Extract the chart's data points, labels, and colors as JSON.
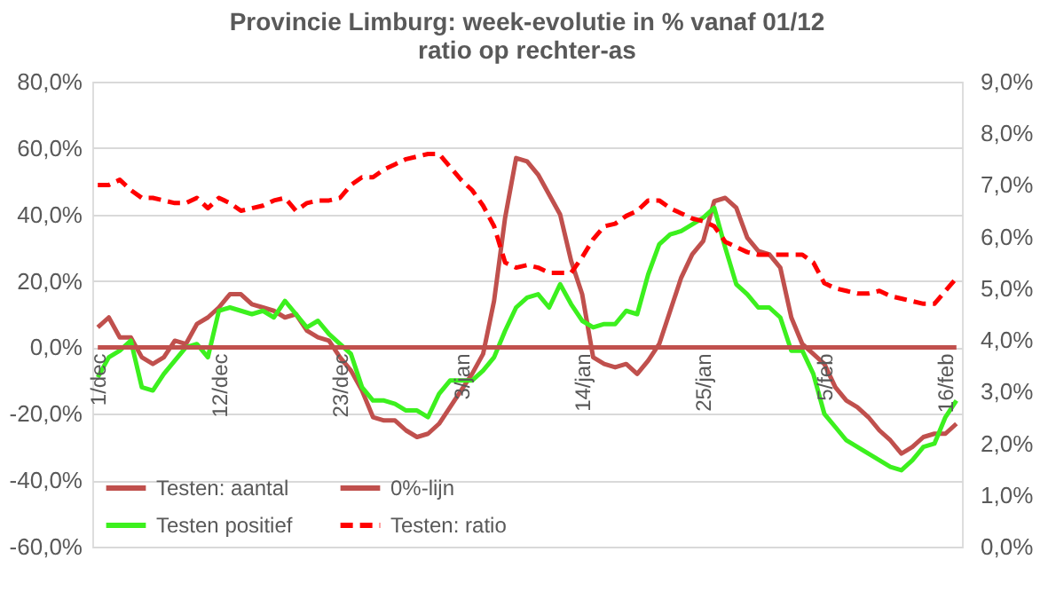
{
  "chart_data": {
    "type": "line",
    "title": "Provincie Limburg: week-evolutie in %  vanaf 01/12",
    "subtitle": "ratio op rechter-as",
    "categories": [
      "1/dec",
      null,
      null,
      null,
      null,
      null,
      null,
      null,
      null,
      null,
      null,
      "12/dec",
      null,
      null,
      null,
      null,
      null,
      null,
      null,
      null,
      null,
      null,
      "23/dec",
      null,
      null,
      null,
      null,
      null,
      null,
      null,
      null,
      null,
      null,
      "3/jan",
      null,
      null,
      null,
      null,
      null,
      null,
      null,
      null,
      null,
      null,
      "14/jan",
      null,
      null,
      null,
      null,
      null,
      null,
      null,
      null,
      null,
      null,
      "25/jan",
      null,
      null,
      null,
      null,
      null,
      null,
      null,
      null,
      null,
      null,
      "5/feb",
      null,
      null,
      null,
      null,
      null,
      null,
      null,
      null,
      null,
      null,
      "16/feb",
      null
    ],
    "series": [
      {
        "name": "Testen: aantal",
        "color": "#c0504d",
        "line_style": "solid",
        "values": [
          6,
          9,
          3,
          3,
          -3,
          -5,
          -3,
          2,
          1,
          7,
          9,
          12,
          16,
          16,
          13,
          12,
          11,
          9,
          10,
          5,
          3,
          2,
          -3,
          -7,
          -13,
          -21,
          -22,
          -22,
          -25,
          -27,
          -26,
          -23,
          -18,
          -13,
          -8,
          -2,
          14,
          39,
          57,
          56,
          52,
          46,
          40,
          26,
          16,
          -3,
          -5,
          -6,
          -5,
          -8,
          -4,
          1,
          11,
          21,
          28,
          32,
          44,
          45,
          42,
          33,
          29,
          28,
          24,
          9,
          1,
          -2,
          -5,
          -12,
          -16,
          -18,
          -21,
          -25,
          -28,
          -32,
          -30,
          -27,
          -26,
          -26,
          -23
        ]
      },
      {
        "name": "Testen positief",
        "color": "#3cf01e",
        "line_style": "solid",
        "values": [
          -9,
          -3,
          -1,
          2,
          -12,
          -13,
          -8,
          -4,
          0,
          1,
          -3,
          11,
          12,
          11,
          10,
          11,
          9,
          14,
          10,
          6,
          8,
          4,
          1,
          -2,
          -12,
          -16,
          -16,
          -17,
          -19,
          -19,
          -21,
          -14,
          -10,
          -10,
          -10,
          -7,
          -3,
          5,
          12,
          15,
          16,
          12,
          19,
          13,
          8,
          6,
          7,
          7,
          11,
          10,
          22,
          31,
          34,
          35,
          37,
          39,
          42,
          30,
          19,
          16,
          12,
          12,
          9,
          -1,
          -1,
          -8,
          -20,
          -24,
          -28,
          -30,
          -32,
          -34,
          -36,
          -37,
          -34,
          -30,
          -29,
          -21,
          -16
        ]
      },
      {
        "name": "0%-lijn",
        "color": "#c0504d",
        "line_style": "solid",
        "values": [
          0,
          0,
          0,
          0,
          0,
          0,
          0,
          0,
          0,
          0,
          0,
          0,
          0,
          0,
          0,
          0,
          0,
          0,
          0,
          0,
          0,
          0,
          0,
          0,
          0,
          0,
          0,
          0,
          0,
          0,
          0,
          0,
          0,
          0,
          0,
          0,
          0,
          0,
          0,
          0,
          0,
          0,
          0,
          0,
          0,
          0,
          0,
          0,
          0,
          0,
          0,
          0,
          0,
          0,
          0,
          0,
          0,
          0,
          0,
          0,
          0,
          0,
          0,
          0,
          0,
          0,
          0,
          0,
          0,
          0,
          0,
          0,
          0,
          0,
          0,
          0,
          0,
          0,
          0
        ]
      },
      {
        "name": "Testen: ratio",
        "color": "#ff0000",
        "line_style": "dashed",
        "axis": "y2",
        "values": [
          7.0,
          7.0,
          7.1,
          6.9,
          6.75,
          6.75,
          6.7,
          6.65,
          6.65,
          6.75,
          6.55,
          6.75,
          6.65,
          6.5,
          6.55,
          6.6,
          6.7,
          6.75,
          6.5,
          6.65,
          6.7,
          6.7,
          6.75,
          7.0,
          7.15,
          7.15,
          7.3,
          7.4,
          7.5,
          7.55,
          7.6,
          7.6,
          7.35,
          7.1,
          6.9,
          6.6,
          6.2,
          5.5,
          5.4,
          5.45,
          5.4,
          5.3,
          5.3,
          5.3,
          5.6,
          5.95,
          6.2,
          6.25,
          6.4,
          6.5,
          6.7,
          6.7,
          6.55,
          6.45,
          6.35,
          6.3,
          6.2,
          5.9,
          5.8,
          5.7,
          5.65,
          5.65,
          5.65,
          5.65,
          5.65,
          5.5,
          5.1,
          5.0,
          4.95,
          4.9,
          4.9,
          4.95,
          4.85,
          4.8,
          4.75,
          4.7,
          4.7,
          4.95,
          5.2
        ]
      }
    ],
    "ylim": [
      -60,
      80
    ],
    "yticks": [
      {
        "value": -60,
        "label": "-60,0%"
      },
      {
        "value": -40,
        "label": "-40,0%"
      },
      {
        "value": -20,
        "label": "-20,0%"
      },
      {
        "value": 0,
        "label": "0,0%"
      },
      {
        "value": 20,
        "label": "20,0%"
      },
      {
        "value": 40,
        "label": "40,0%"
      },
      {
        "value": 60,
        "label": "60,0%"
      },
      {
        "value": 80,
        "label": "80,0%"
      }
    ],
    "y2lim": [
      0,
      9
    ],
    "y2ticks": [
      {
        "value": 0,
        "label": "0,0%"
      },
      {
        "value": 1,
        "label": "1,0%"
      },
      {
        "value": 2,
        "label": "2,0%"
      },
      {
        "value": 3,
        "label": "3,0%"
      },
      {
        "value": 4,
        "label": "4,0%"
      },
      {
        "value": 5,
        "label": "5,0%"
      },
      {
        "value": 6,
        "label": "6,0%"
      },
      {
        "value": 7,
        "label": "7,0%"
      },
      {
        "value": 8,
        "label": "8,0%"
      },
      {
        "value": 9,
        "label": "9,0%"
      }
    ],
    "grid": "y",
    "legend": "bottom left",
    "marker": "none"
  }
}
